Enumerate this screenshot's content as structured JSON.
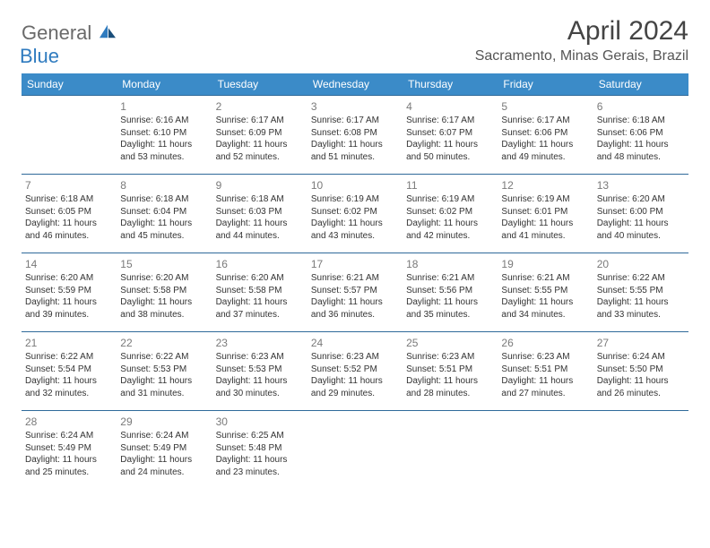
{
  "logo": {
    "general": "General",
    "blue": "Blue"
  },
  "title": "April 2024",
  "location": "Sacramento, Minas Gerais, Brazil",
  "colors": {
    "header_bg": "#3b8bc8",
    "header_text": "#ffffff",
    "cell_border": "#2f6a9a",
    "daynum": "#7a7a7a",
    "body_text": "#333333",
    "logo_gray": "#6a6a6a",
    "logo_blue": "#2f7bbf"
  },
  "weekdays": [
    "Sunday",
    "Monday",
    "Tuesday",
    "Wednesday",
    "Thursday",
    "Friday",
    "Saturday"
  ],
  "weeks": [
    [
      null,
      {
        "n": "1",
        "sr": "Sunrise: 6:16 AM",
        "ss": "Sunset: 6:10 PM",
        "d1": "Daylight: 11 hours",
        "d2": "and 53 minutes."
      },
      {
        "n": "2",
        "sr": "Sunrise: 6:17 AM",
        "ss": "Sunset: 6:09 PM",
        "d1": "Daylight: 11 hours",
        "d2": "and 52 minutes."
      },
      {
        "n": "3",
        "sr": "Sunrise: 6:17 AM",
        "ss": "Sunset: 6:08 PM",
        "d1": "Daylight: 11 hours",
        "d2": "and 51 minutes."
      },
      {
        "n": "4",
        "sr": "Sunrise: 6:17 AM",
        "ss": "Sunset: 6:07 PM",
        "d1": "Daylight: 11 hours",
        "d2": "and 50 minutes."
      },
      {
        "n": "5",
        "sr": "Sunrise: 6:17 AM",
        "ss": "Sunset: 6:06 PM",
        "d1": "Daylight: 11 hours",
        "d2": "and 49 minutes."
      },
      {
        "n": "6",
        "sr": "Sunrise: 6:18 AM",
        "ss": "Sunset: 6:06 PM",
        "d1": "Daylight: 11 hours",
        "d2": "and 48 minutes."
      }
    ],
    [
      {
        "n": "7",
        "sr": "Sunrise: 6:18 AM",
        "ss": "Sunset: 6:05 PM",
        "d1": "Daylight: 11 hours",
        "d2": "and 46 minutes."
      },
      {
        "n": "8",
        "sr": "Sunrise: 6:18 AM",
        "ss": "Sunset: 6:04 PM",
        "d1": "Daylight: 11 hours",
        "d2": "and 45 minutes."
      },
      {
        "n": "9",
        "sr": "Sunrise: 6:18 AM",
        "ss": "Sunset: 6:03 PM",
        "d1": "Daylight: 11 hours",
        "d2": "and 44 minutes."
      },
      {
        "n": "10",
        "sr": "Sunrise: 6:19 AM",
        "ss": "Sunset: 6:02 PM",
        "d1": "Daylight: 11 hours",
        "d2": "and 43 minutes."
      },
      {
        "n": "11",
        "sr": "Sunrise: 6:19 AM",
        "ss": "Sunset: 6:02 PM",
        "d1": "Daylight: 11 hours",
        "d2": "and 42 minutes."
      },
      {
        "n": "12",
        "sr": "Sunrise: 6:19 AM",
        "ss": "Sunset: 6:01 PM",
        "d1": "Daylight: 11 hours",
        "d2": "and 41 minutes."
      },
      {
        "n": "13",
        "sr": "Sunrise: 6:20 AM",
        "ss": "Sunset: 6:00 PM",
        "d1": "Daylight: 11 hours",
        "d2": "and 40 minutes."
      }
    ],
    [
      {
        "n": "14",
        "sr": "Sunrise: 6:20 AM",
        "ss": "Sunset: 5:59 PM",
        "d1": "Daylight: 11 hours",
        "d2": "and 39 minutes."
      },
      {
        "n": "15",
        "sr": "Sunrise: 6:20 AM",
        "ss": "Sunset: 5:58 PM",
        "d1": "Daylight: 11 hours",
        "d2": "and 38 minutes."
      },
      {
        "n": "16",
        "sr": "Sunrise: 6:20 AM",
        "ss": "Sunset: 5:58 PM",
        "d1": "Daylight: 11 hours",
        "d2": "and 37 minutes."
      },
      {
        "n": "17",
        "sr": "Sunrise: 6:21 AM",
        "ss": "Sunset: 5:57 PM",
        "d1": "Daylight: 11 hours",
        "d2": "and 36 minutes."
      },
      {
        "n": "18",
        "sr": "Sunrise: 6:21 AM",
        "ss": "Sunset: 5:56 PM",
        "d1": "Daylight: 11 hours",
        "d2": "and 35 minutes."
      },
      {
        "n": "19",
        "sr": "Sunrise: 6:21 AM",
        "ss": "Sunset: 5:55 PM",
        "d1": "Daylight: 11 hours",
        "d2": "and 34 minutes."
      },
      {
        "n": "20",
        "sr": "Sunrise: 6:22 AM",
        "ss": "Sunset: 5:55 PM",
        "d1": "Daylight: 11 hours",
        "d2": "and 33 minutes."
      }
    ],
    [
      {
        "n": "21",
        "sr": "Sunrise: 6:22 AM",
        "ss": "Sunset: 5:54 PM",
        "d1": "Daylight: 11 hours",
        "d2": "and 32 minutes."
      },
      {
        "n": "22",
        "sr": "Sunrise: 6:22 AM",
        "ss": "Sunset: 5:53 PM",
        "d1": "Daylight: 11 hours",
        "d2": "and 31 minutes."
      },
      {
        "n": "23",
        "sr": "Sunrise: 6:23 AM",
        "ss": "Sunset: 5:53 PM",
        "d1": "Daylight: 11 hours",
        "d2": "and 30 minutes."
      },
      {
        "n": "24",
        "sr": "Sunrise: 6:23 AM",
        "ss": "Sunset: 5:52 PM",
        "d1": "Daylight: 11 hours",
        "d2": "and 29 minutes."
      },
      {
        "n": "25",
        "sr": "Sunrise: 6:23 AM",
        "ss": "Sunset: 5:51 PM",
        "d1": "Daylight: 11 hours",
        "d2": "and 28 minutes."
      },
      {
        "n": "26",
        "sr": "Sunrise: 6:23 AM",
        "ss": "Sunset: 5:51 PM",
        "d1": "Daylight: 11 hours",
        "d2": "and 27 minutes."
      },
      {
        "n": "27",
        "sr": "Sunrise: 6:24 AM",
        "ss": "Sunset: 5:50 PM",
        "d1": "Daylight: 11 hours",
        "d2": "and 26 minutes."
      }
    ],
    [
      {
        "n": "28",
        "sr": "Sunrise: 6:24 AM",
        "ss": "Sunset: 5:49 PM",
        "d1": "Daylight: 11 hours",
        "d2": "and 25 minutes."
      },
      {
        "n": "29",
        "sr": "Sunrise: 6:24 AM",
        "ss": "Sunset: 5:49 PM",
        "d1": "Daylight: 11 hours",
        "d2": "and 24 minutes."
      },
      {
        "n": "30",
        "sr": "Sunrise: 6:25 AM",
        "ss": "Sunset: 5:48 PM",
        "d1": "Daylight: 11 hours",
        "d2": "and 23 minutes."
      },
      null,
      null,
      null,
      null
    ]
  ]
}
